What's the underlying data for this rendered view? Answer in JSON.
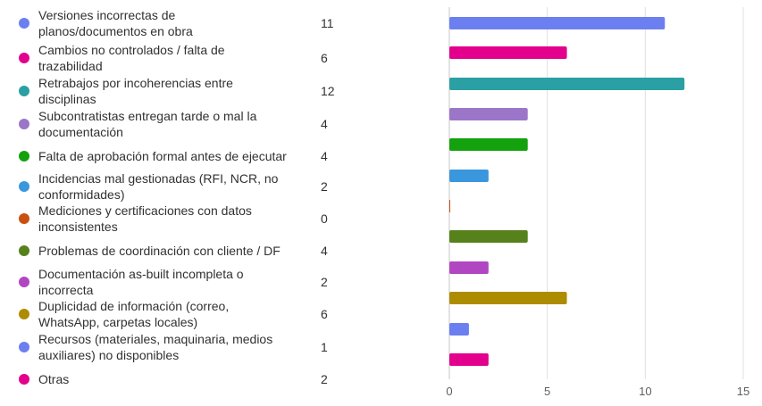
{
  "chart_data": {
    "type": "bar",
    "orientation": "horizontal",
    "categories": [
      "Versiones incorrectas de planos/documentos en obra",
      "Cambios no controlados / falta de trazabilidad",
      "Retrabajos por incoherencias entre disciplinas",
      "Subcontratistas entregan tarde o mal la documentación",
      "Falta de aprobación formal antes de ejecutar",
      "Incidencias mal gestionadas (RFI, NCR, no conformidades)",
      "Mediciones y certificaciones con datos inconsistentes",
      "Problemas de coordinación con cliente / DF",
      "Documentación as-built incompleta o incorrecta",
      "Duplicidad de información (correo, WhatsApp, carpetas locales)",
      "Recursos (materiales, maquinaria, medios auxiliares) no disponibles",
      "Otras"
    ],
    "values": [
      11,
      6,
      12,
      4,
      4,
      2,
      0,
      4,
      2,
      6,
      1,
      2
    ],
    "colors": [
      "#6b7ff0",
      "#e3008c",
      "#2aa0a4",
      "#9b76c8",
      "#13a10e",
      "#3a96dd",
      "#ca5010",
      "#57811b",
      "#b146c2",
      "#ae8c00",
      "#6b7ff0",
      "#e3008c"
    ],
    "xlim": [
      0,
      15
    ],
    "xticks": [
      0,
      5,
      10,
      15
    ],
    "grid": true,
    "legend_position": "left"
  }
}
